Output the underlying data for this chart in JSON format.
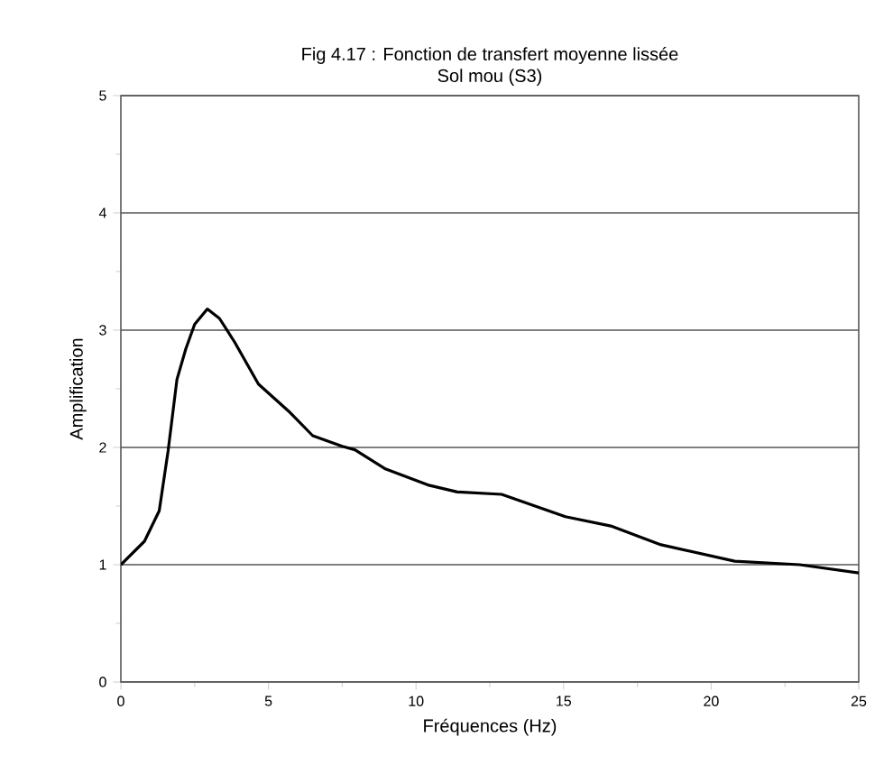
{
  "chart_data": {
    "type": "line",
    "title": "Fig 4.17 : Fonction de transfert moyenne lissée",
    "subtitle": "Sol mou (S3)",
    "xlabel": "Fréquences (Hz)",
    "ylabel": "Amplification",
    "x": [
      0,
      0.8,
      1.3,
      1.6,
      1.9,
      2.2,
      2.5,
      2.93,
      3.34,
      3.85,
      4.66,
      5.68,
      6.5,
      7.5,
      7.93,
      8.94,
      10.4,
      11.4,
      12.9,
      15.06,
      16.6,
      18.3,
      20.8,
      23.0,
      25
    ],
    "series": [
      {
        "color": "#000000",
        "values": [
          1.0,
          1.2,
          1.46,
          1.97,
          2.58,
          2.84,
          3.05,
          3.18,
          3.1,
          2.9,
          2.54,
          2.31,
          2.1,
          2.01,
          1.98,
          1.82,
          1.68,
          1.62,
          1.6,
          1.41,
          1.33,
          1.17,
          1.03,
          1.0,
          0.93
        ]
      }
    ],
    "xlim": [
      0,
      25
    ],
    "ylim": [
      0,
      5
    ],
    "xticks": [
      0,
      5,
      10,
      15,
      20,
      25
    ],
    "yticks": [
      0,
      1,
      2,
      3,
      4,
      5
    ],
    "grid": "y",
    "marker": "none",
    "line_style": "solid"
  }
}
